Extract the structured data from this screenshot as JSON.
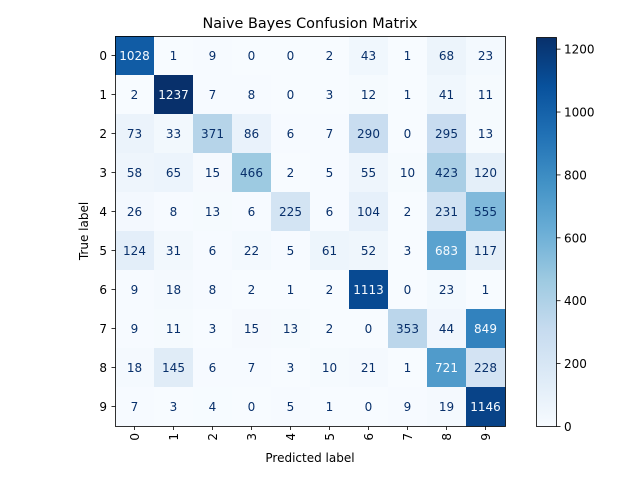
{
  "chart_data": {
    "type": "heatmap",
    "title": "Naive Bayes Confusion Matrix",
    "xlabel": "Predicted label",
    "ylabel": "True label",
    "x_categories": [
      "0",
      "1",
      "2",
      "3",
      "4",
      "5",
      "6",
      "7",
      "8",
      "9"
    ],
    "y_categories": [
      "0",
      "1",
      "2",
      "3",
      "4",
      "5",
      "6",
      "7",
      "8",
      "9"
    ],
    "matrix": [
      [
        1028,
        1,
        9,
        0,
        0,
        2,
        43,
        1,
        68,
        23
      ],
      [
        2,
        1237,
        7,
        8,
        0,
        3,
        12,
        1,
        41,
        11
      ],
      [
        73,
        33,
        371,
        86,
        6,
        7,
        290,
        0,
        295,
        13
      ],
      [
        58,
        65,
        15,
        466,
        2,
        5,
        55,
        10,
        423,
        120
      ],
      [
        26,
        8,
        13,
        6,
        225,
        6,
        104,
        2,
        231,
        555
      ],
      [
        124,
        31,
        6,
        22,
        5,
        61,
        52,
        3,
        683,
        117
      ],
      [
        9,
        18,
        8,
        2,
        1,
        2,
        1113,
        0,
        23,
        1
      ],
      [
        9,
        11,
        3,
        15,
        13,
        2,
        0,
        353,
        44,
        849
      ],
      [
        18,
        145,
        6,
        7,
        3,
        10,
        21,
        1,
        721,
        228
      ],
      [
        7,
        3,
        4,
        0,
        5,
        1,
        0,
        9,
        19,
        1146
      ]
    ],
    "colormap": "Blues",
    "color_range": [
      0,
      1237
    ],
    "colorbar_ticks": [
      0,
      200,
      400,
      600,
      800,
      1000,
      1200
    ],
    "grid": false
  }
}
